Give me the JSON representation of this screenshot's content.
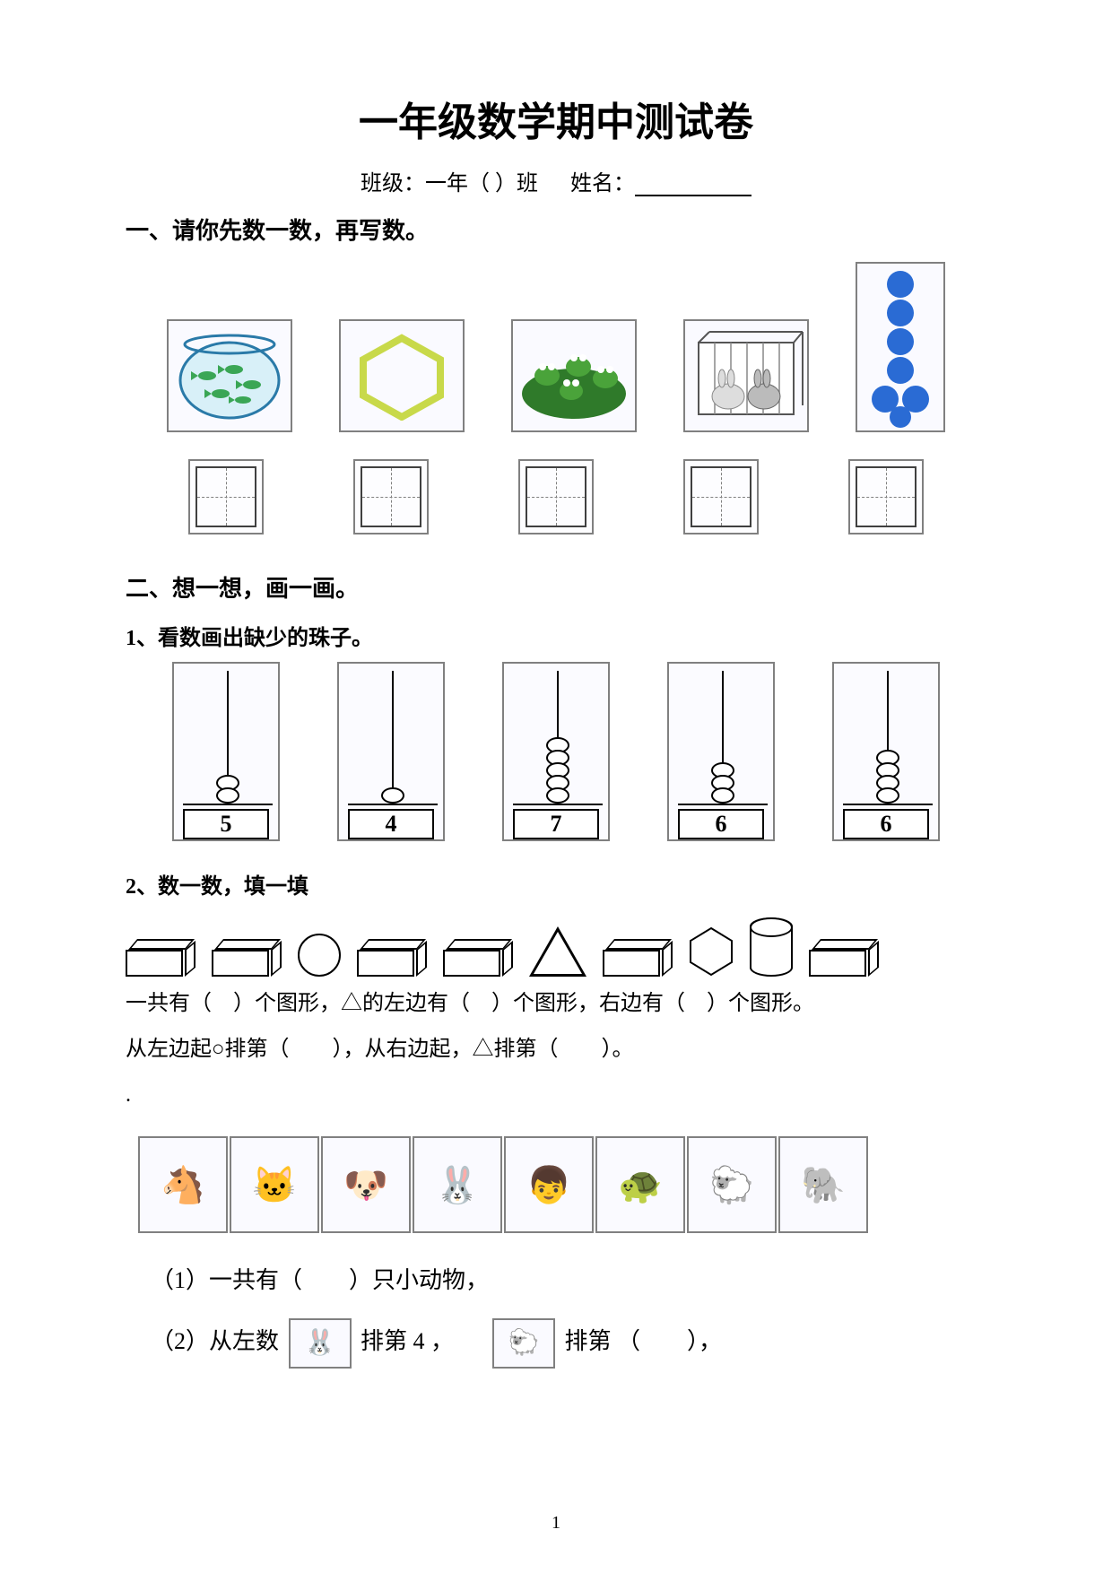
{
  "title": "一年级数学期中测试卷",
  "class_line_prefix": "班级：一年（",
  "class_line_suffix": "）班",
  "name_label": "姓名：",
  "section1_title": "一、请你先数一数，再写数。",
  "section2_title": "二、想一想，画一画。",
  "sub2_1": "1、看数画出缺少的珠子。",
  "sub2_2": "2、数一数，填一填",
  "count_items": [
    {
      "name": "fishbowl",
      "desc": "鱼缸里5条鱼",
      "bg": "#eaf6fb"
    },
    {
      "name": "hexagon",
      "desc": "1个六边形",
      "bg": "#ffffff"
    },
    {
      "name": "frogs",
      "desc": "荷叶上4只青蛙",
      "bg": "#eef8ea"
    },
    {
      "name": "rabbits",
      "desc": "笼子里2只兔",
      "bg": "#f4f0ea"
    },
    {
      "name": "dots",
      "desc": "7个蓝色圆点",
      "bg": "#ffffff"
    }
  ],
  "abacus": [
    {
      "label": "5",
      "beads_drawn": 2
    },
    {
      "label": "4",
      "beads_drawn": 1
    },
    {
      "label": "7",
      "beads_drawn": 5
    },
    {
      "label": "6",
      "beads_drawn": 3
    },
    {
      "label": "6",
      "beads_drawn": 4
    }
  ],
  "shapes_sequence": [
    "cuboid",
    "cuboid",
    "circle",
    "cuboid",
    "cuboid",
    "triangle",
    "cuboid",
    "hexagon",
    "cylinder",
    "cuboid"
  ],
  "shapes_q1": "一共有（　）个图形，△的左边有（　）个图形，右边有（　）个图形。",
  "shapes_q2": "从左边起○排第（　　），从右边起，△排第（　　）。",
  "animals": [
    {
      "name": "horse",
      "glyph": "🐴"
    },
    {
      "name": "cat",
      "glyph": "🐱"
    },
    {
      "name": "dog",
      "glyph": "🐶"
    },
    {
      "name": "rabbit",
      "glyph": "🐰"
    },
    {
      "name": "person",
      "glyph": "👦"
    },
    {
      "name": "turtle",
      "glyph": "🐢"
    },
    {
      "name": "sheep",
      "glyph": "🐑"
    },
    {
      "name": "elephant",
      "glyph": "🐘"
    }
  ],
  "q3_1": "（1）一共有（　　）只小动物，",
  "q3_2_a": "（2）从左数",
  "q3_2_b": "排第 4 ，",
  "q3_2_c": "排第 （　　），",
  "inline_animal_1": "🐰",
  "inline_animal_2": "🐑",
  "dot_color": "#2a6bd4",
  "hexagon_stroke": "#c8d94a",
  "frog_color": "#4aa33a",
  "page_number": "1"
}
